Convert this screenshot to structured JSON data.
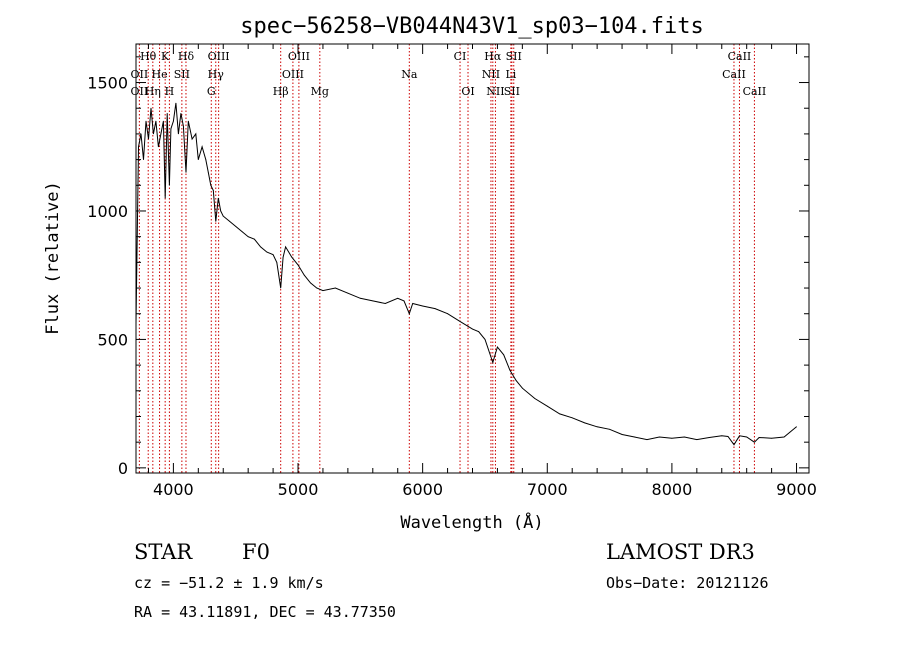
{
  "chart_data": {
    "type": "line",
    "title": "spec−56258−VB044N43V1_sp03−104.fits",
    "xlabel": "Wavelength (Å)",
    "ylabel": "Flux (relative)",
    "xlim": [
      3700,
      9100
    ],
    "ylim": [
      -20,
      1650
    ],
    "xticks": [
      4000,
      5000,
      6000,
      7000,
      8000,
      9000
    ],
    "yticks": [
      0,
      500,
      1000,
      1500
    ],
    "series": [
      {
        "name": "spectrum",
        "x": [
          3700,
          3720,
          3740,
          3760,
          3780,
          3800,
          3820,
          3840,
          3860,
          3880,
          3900,
          3920,
          3934,
          3950,
          3968,
          3980,
          4000,
          4020,
          4040,
          4060,
          4080,
          4101,
          4120,
          4150,
          4180,
          4200,
          4230,
          4260,
          4280,
          4300,
          4320,
          4340,
          4360,
          4380,
          4400,
          4450,
          4500,
          4550,
          4600,
          4650,
          4700,
          4750,
          4800,
          4830,
          4861,
          4880,
          4900,
          4950,
          5000,
          5050,
          5100,
          5150,
          5200,
          5300,
          5400,
          5500,
          5600,
          5700,
          5800,
          5850,
          5893,
          5920,
          6000,
          6100,
          6200,
          6300,
          6400,
          6450,
          6500,
          6563,
          6600,
          6650,
          6700,
          6750,
          6800,
          6900,
          7000,
          7100,
          7200,
          7300,
          7400,
          7500,
          7600,
          7700,
          7800,
          7900,
          8000,
          8100,
          8200,
          8300,
          8400,
          8450,
          8498,
          8542,
          8600,
          8662,
          8700,
          8800,
          8900,
          8950,
          9000
        ],
        "y": [
          560,
          1250,
          1300,
          1200,
          1350,
          1280,
          1400,
          1300,
          1350,
          1250,
          1300,
          1350,
          1050,
          1380,
          1100,
          1320,
          1350,
          1420,
          1300,
          1380,
          1330,
          1150,
          1350,
          1280,
          1300,
          1200,
          1250,
          1200,
          1150,
          1100,
          1080,
          960,
          1050,
          1000,
          980,
          960,
          940,
          920,
          900,
          890,
          860,
          840,
          830,
          800,
          700,
          820,
          860,
          820,
          790,
          750,
          720,
          700,
          690,
          700,
          680,
          660,
          650,
          640,
          660,
          650,
          600,
          640,
          630,
          620,
          600,
          570,
          540,
          530,
          500,
          410,
          470,
          440,
          380,
          340,
          310,
          270,
          240,
          210,
          195,
          175,
          160,
          150,
          130,
          120,
          110,
          120,
          115,
          120,
          110,
          118,
          125,
          122,
          90,
          125,
          120,
          100,
          118,
          115,
          120,
          140,
          160
        ]
      }
    ],
    "line_labels": [
      {
        "text": "Hθ",
        "x": 3798,
        "row": 1
      },
      {
        "text": "K",
        "x": 3934,
        "row": 1
      },
      {
        "text": "Hδ",
        "x": 4101,
        "row": 1
      },
      {
        "text": "OIII",
        "x": 4363,
        "row": 1
      },
      {
        "text": "OIII",
        "x": 5007,
        "row": 1
      },
      {
        "text": "CI",
        "x": 6300,
        "row": 1
      },
      {
        "text": "Hα",
        "x": 6563,
        "row": 1
      },
      {
        "text": "SII",
        "x": 6731,
        "row": 1
      },
      {
        "text": "CaII",
        "x": 8542,
        "row": 1
      },
      {
        "text": "OII",
        "x": 3727,
        "row": 2
      },
      {
        "text": "He",
        "x": 3889,
        "row": 2
      },
      {
        "text": "SII",
        "x": 4068,
        "row": 2
      },
      {
        "text": "Hγ",
        "x": 4340,
        "row": 2
      },
      {
        "text": "OIII",
        "x": 4959,
        "row": 2
      },
      {
        "text": "Na",
        "x": 5893,
        "row": 2
      },
      {
        "text": "NII",
        "x": 6548,
        "row": 2
      },
      {
        "text": "Li",
        "x": 6708,
        "row": 2
      },
      {
        "text": "CaII",
        "x": 8498,
        "row": 2
      },
      {
        "text": "OII",
        "x": 3727,
        "row": 3
      },
      {
        "text": "Hη",
        "x": 3835,
        "row": 3
      },
      {
        "text": "H",
        "x": 3968,
        "row": 3
      },
      {
        "text": "G",
        "x": 4304,
        "row": 3
      },
      {
        "text": "Hβ",
        "x": 4861,
        "row": 3
      },
      {
        "text": "Mg",
        "x": 5175,
        "row": 3
      },
      {
        "text": "OI",
        "x": 6364,
        "row": 3
      },
      {
        "text": "NII",
        "x": 6584,
        "row": 3
      },
      {
        "text": "SII",
        "x": 6716,
        "row": 3
      },
      {
        "text": "CaII",
        "x": 8662,
        "row": 3
      }
    ],
    "line_markers": [
      3727,
      3798,
      3835,
      3889,
      3934,
      3968,
      4068,
      4101,
      4304,
      4340,
      4363,
      4861,
      4959,
      5007,
      5175,
      5893,
      6300,
      6364,
      6548,
      6563,
      6584,
      6708,
      6716,
      6731,
      8498,
      8542,
      8662
    ]
  },
  "info": {
    "class": "STAR",
    "subclass": "F0",
    "survey": "LAMOST DR3",
    "cz": "cz = −51.2 ± 1.9 km/s",
    "obs_date": "Obs−Date: 20121126",
    "coords": "RA =  43.11891, DEC =  43.77350"
  },
  "colors": {
    "axis": "#000000",
    "markers": "#cc0000",
    "spectrum": "#000000"
  }
}
